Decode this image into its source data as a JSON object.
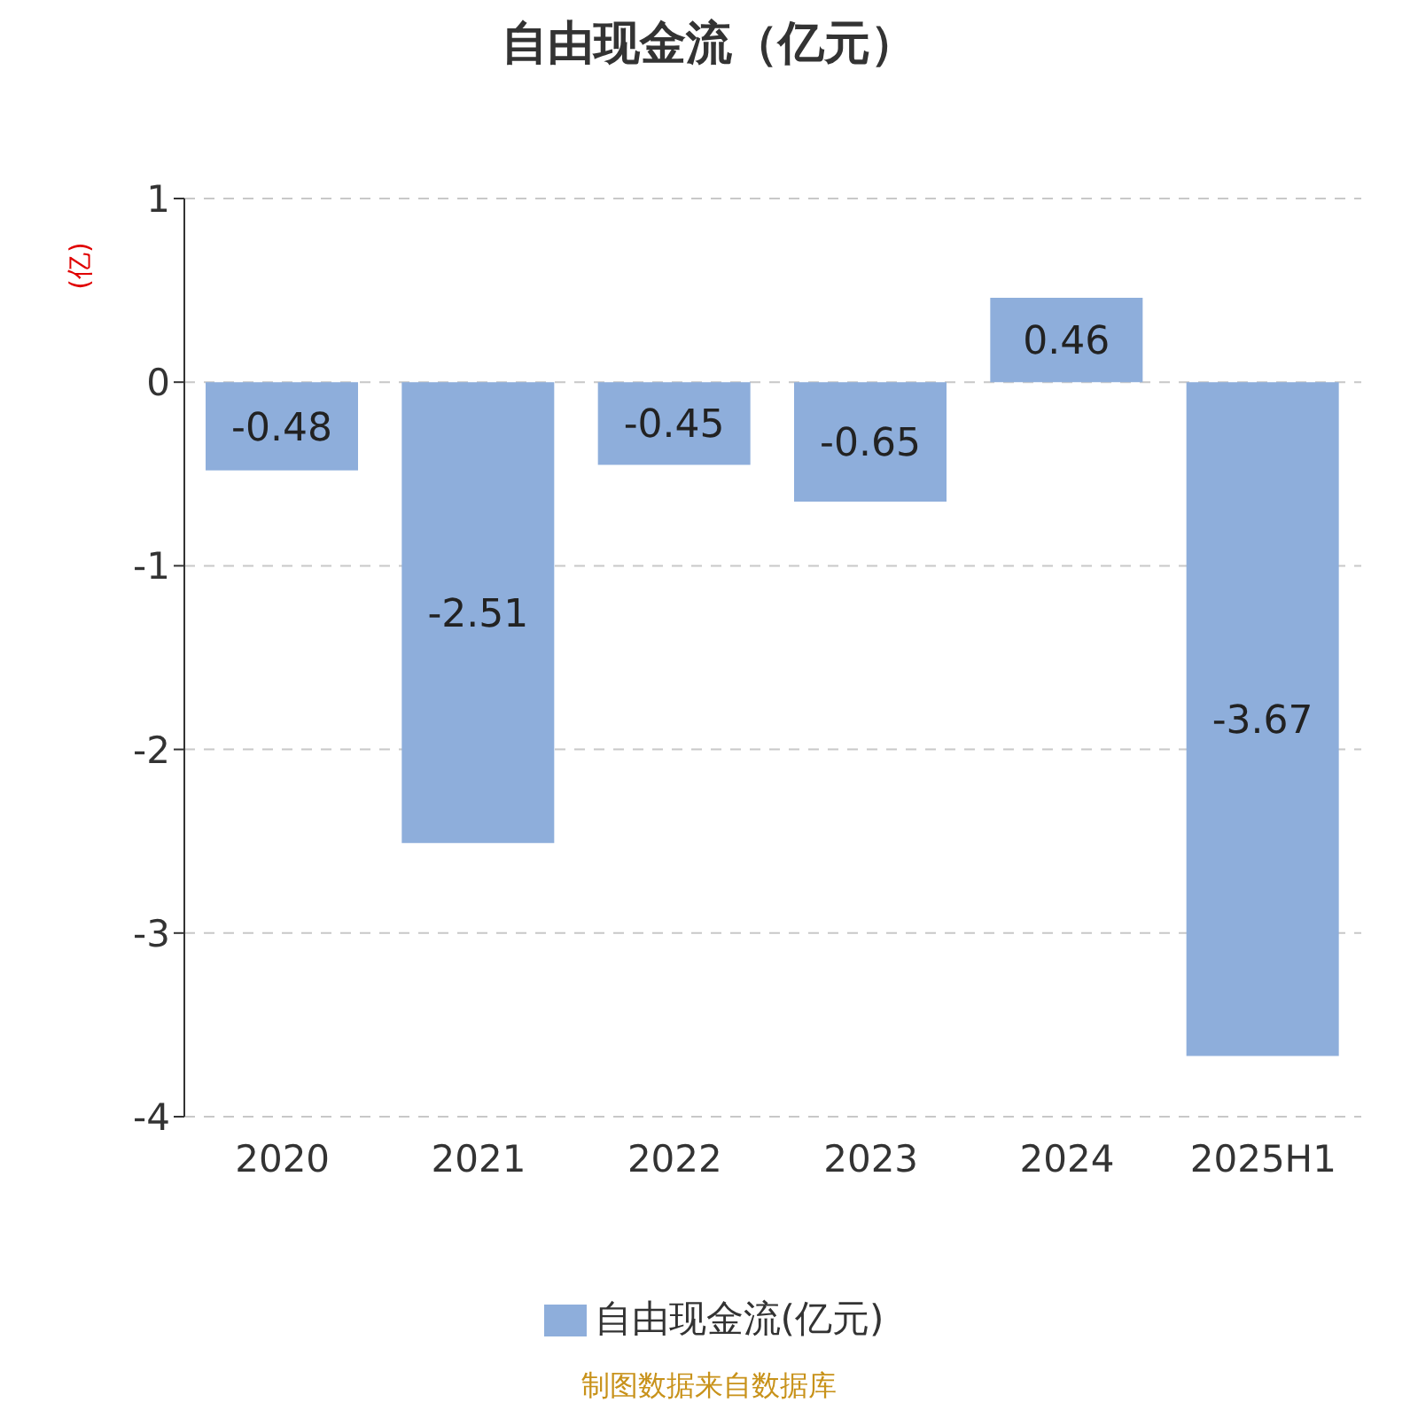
{
  "chart_data": {
    "type": "bar",
    "title": "自由现金流（亿元）",
    "ylabel": "(亿)",
    "categories": [
      "2020",
      "2021",
      "2022",
      "2023",
      "2024",
      "2025H1"
    ],
    "series": [
      {
        "name": "自由现金流(亿元)",
        "color": "#8eaedb",
        "values": [
          -0.48,
          -2.51,
          -0.45,
          -0.65,
          0.46,
          -3.67
        ]
      }
    ],
    "ylim": [
      -4,
      1
    ],
    "yticks": [
      -4,
      -3,
      -2,
      -1,
      0,
      1
    ],
    "grid": "y",
    "legend": "bottom",
    "data_labels": true,
    "annotations": [
      "制图数据来自数据库"
    ]
  }
}
